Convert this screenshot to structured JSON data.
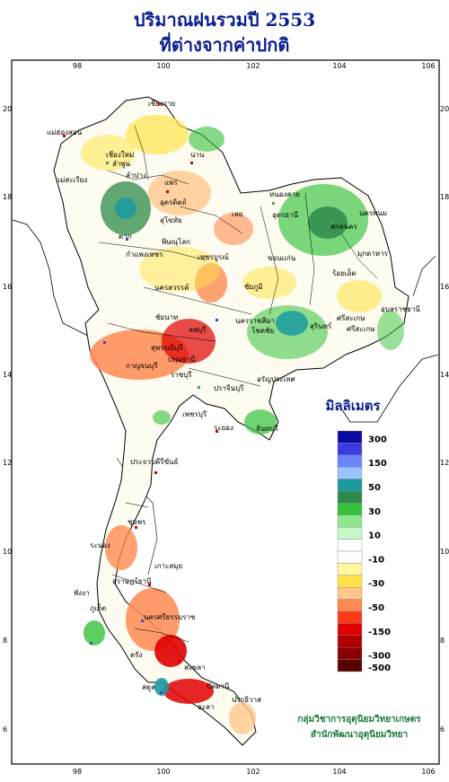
{
  "title_line1": "ปริมาณฝนรวมปี 2553",
  "title_line2": "ที่ต่างจากค่าปกติ",
  "unit_label": "มิลลิเมตร",
  "x_ticks": [
    "98",
    "100",
    "102",
    "104",
    "106"
  ],
  "y_ticks": [
    "20",
    "18",
    "16",
    "14",
    "12",
    "10",
    "8",
    "6"
  ],
  "legend": {
    "swatches": [
      {
        "color": "#0a0aa0",
        "label": "300"
      },
      {
        "color": "#3a3ae0",
        "label": ""
      },
      {
        "color": "#6a86ff",
        "label": "150"
      },
      {
        "color": "#9bc3ff",
        "label": ""
      },
      {
        "color": "#1a9aa0",
        "label": "50"
      },
      {
        "color": "#2e8a4a",
        "label": ""
      },
      {
        "color": "#33c23a",
        "label": "30"
      },
      {
        "color": "#8fe88f",
        "label": ""
      },
      {
        "color": "#c8f7c8",
        "label": "10"
      },
      {
        "color": "#ffffff",
        "label": ""
      },
      {
        "color": "#ffffff",
        "label": "-10"
      },
      {
        "color": "#fff7a0",
        "label": ""
      },
      {
        "color": "#ffe34a",
        "label": "-30"
      },
      {
        "color": "#ffc78c",
        "label": ""
      },
      {
        "color": "#ff8a50",
        "label": "-50"
      },
      {
        "color": "#ff3a1a",
        "label": ""
      },
      {
        "color": "#e00000",
        "label": "-150"
      },
      {
        "color": "#b00000",
        "label": ""
      },
      {
        "color": "#880000",
        "label": "-300"
      },
      {
        "color": "#5a0000",
        "label": "-500"
      }
    ]
  },
  "credits": {
    "line1": "กลุ่มวิชาการอุตุนิยมวิทยาเกษตร",
    "line2": "สำนักพัฒนาอุตุนิยมวิทยา"
  },
  "places": [
    {
      "name": "เชียงราย"
    },
    {
      "name": "แม่ฮ่องสอน"
    },
    {
      "name": "เชียงใหม่"
    },
    {
      "name": "ลำพูน"
    },
    {
      "name": "น่าน"
    },
    {
      "name": "แพร่"
    },
    {
      "name": "แม่สะเรียง"
    },
    {
      "name": "อุตรดิตถ์"
    },
    {
      "name": "ตาก"
    },
    {
      "name": "พิษณุโลก"
    },
    {
      "name": "กำแพงเพชร"
    },
    {
      "name": "เพชรบูรณ์"
    },
    {
      "name": "เลย"
    },
    {
      "name": "หนองคาย"
    },
    {
      "name": "อุดรธานี"
    },
    {
      "name": "สกลนคร"
    },
    {
      "name": "นครพนม"
    },
    {
      "name": "มุกดาหาร"
    },
    {
      "name": "ขอนแก่น"
    },
    {
      "name": "ร้อยเอ็ด"
    },
    {
      "name": "อุบลราชธานี"
    },
    {
      "name": "ชัยภูมิ"
    },
    {
      "name": "นครสวรรค์"
    },
    {
      "name": "นครราชสีมา"
    },
    {
      "name": "โชคชัย"
    },
    {
      "name": "สุรินทร์"
    },
    {
      "name": "ศรีสะเกษ"
    },
    {
      "name": "ลพบุรี"
    },
    {
      "name": "สุพรรณบุรี"
    },
    {
      "name": "กาญจนบุรี"
    },
    {
      "name": "ปทุมธานี"
    },
    {
      "name": "ราชบุรี"
    },
    {
      "name": "ปราจีนบุรี"
    },
    {
      "name": "อรัญประเทศ"
    },
    {
      "name": "เพชรบุรี"
    },
    {
      "name": "ระยอง"
    },
    {
      "name": "จันทบุรี"
    },
    {
      "name": "ประจวบคีรีขันธ์"
    },
    {
      "name": "ชุมพร"
    },
    {
      "name": "ระนอง"
    },
    {
      "name": "เกาะสมุย"
    },
    {
      "name": "สุราษฎร์ธานี"
    },
    {
      "name": "พังงา"
    },
    {
      "name": "ภูเก็ต"
    },
    {
      "name": "นครศรีธรรมราช"
    },
    {
      "name": "ตรัง"
    },
    {
      "name": "สงขลา"
    },
    {
      "name": "ปัตตานี"
    },
    {
      "name": "นราธิวาส"
    },
    {
      "name": "สตูล"
    },
    {
      "name": "ยะลา"
    },
    {
      "name": "ชัยนาท"
    },
    {
      "name": "สุโขทัย"
    },
    {
      "name": "ลำปาง"
    },
    {
      "name": "ศรีสะเกษ"
    }
  ]
}
